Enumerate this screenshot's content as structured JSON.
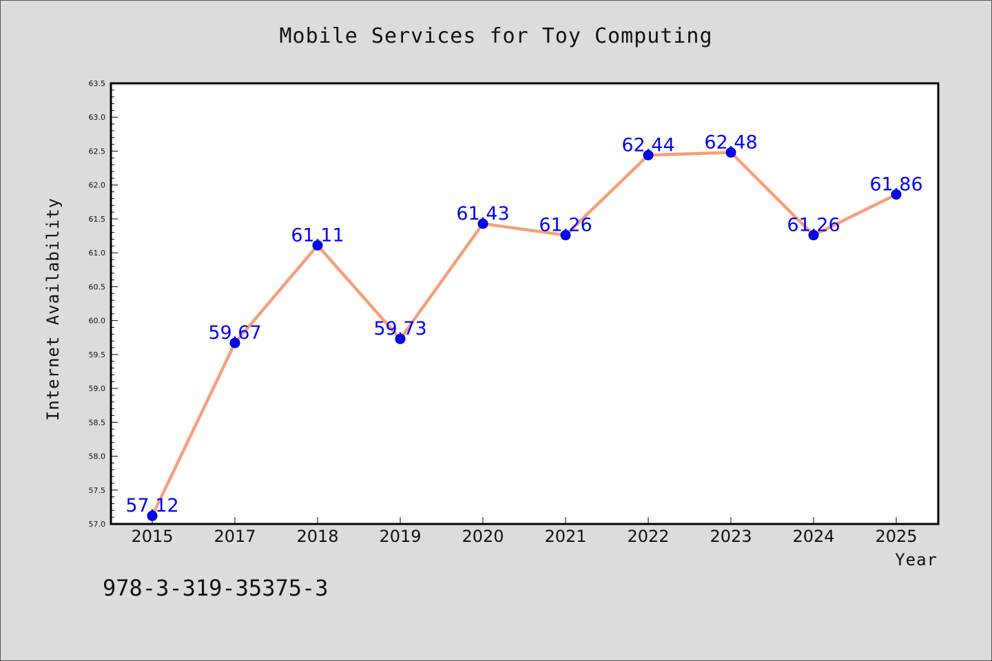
{
  "chart_data": {
    "type": "line",
    "title": "Mobile Services for Toy Computing",
    "xlabel": "Year",
    "ylabel": "Internet Availability",
    "categories": [
      "2015",
      "2017",
      "2018",
      "2019",
      "2020",
      "2021",
      "2022",
      "2023",
      "2024",
      "2025"
    ],
    "series": [
      {
        "values": [
          57.12,
          59.67,
          61.11,
          59.73,
          61.43,
          61.26,
          62.44,
          62.48,
          61.26,
          61.86
        ],
        "line_color": "#f4a07c",
        "marker_color": "#0000ff"
      }
    ],
    "data_labels": [
      "57.12",
      "59.67",
      "61.11",
      "59.73",
      "61.43",
      "61.26",
      "62.44",
      "62.48",
      "61.26",
      "61.86"
    ],
    "ylim": [
      57.0,
      63.5
    ],
    "yticks": [
      "57.0",
      "57.5",
      "58.0",
      "58.5",
      "59.0",
      "59.5",
      "60.0",
      "60.5",
      "61.0",
      "61.5",
      "62.0",
      "62.5",
      "63.0",
      "63.5"
    ],
    "grid": false,
    "legend": "none",
    "label_color": "#0000ff"
  },
  "footer": {
    "isbn": "978-3-319-35375-3"
  }
}
